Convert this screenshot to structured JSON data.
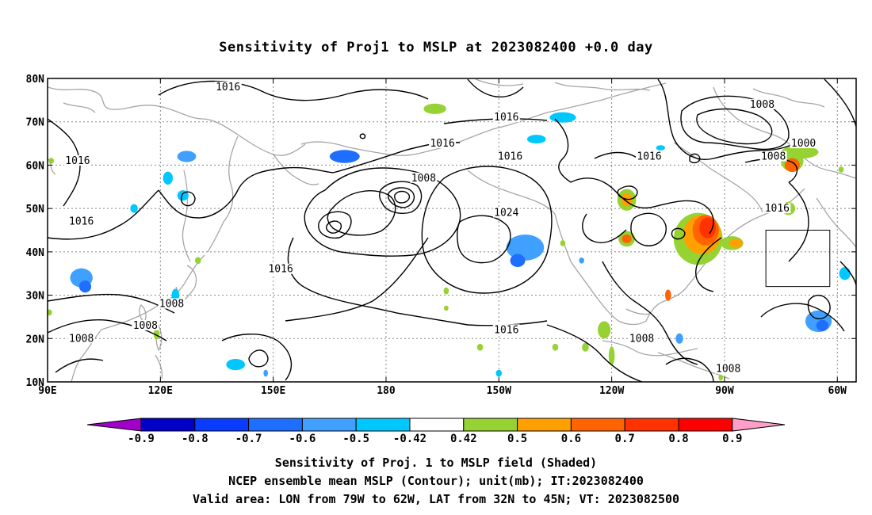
{
  "title": "Sensitivity of Proj1 to MSLP at 2023082400 +0.0 day",
  "map": {
    "lon_range": [
      90,
      305
    ],
    "lat_range": [
      10,
      80
    ],
    "x_ticks": [
      "90E",
      "120E",
      "150E",
      "180",
      "150W",
      "120W",
      "90W",
      "60W"
    ],
    "x_tick_lons": [
      90,
      120,
      150,
      180,
      210,
      240,
      270,
      300
    ],
    "y_ticks": [
      "10N",
      "20N",
      "30N",
      "40N",
      "50N",
      "60N",
      "70N",
      "80N"
    ],
    "y_tick_lats": [
      10,
      20,
      30,
      40,
      50,
      60,
      70,
      80
    ],
    "grid": "dotted",
    "coastline_color": "#a6a6a6",
    "valid_box": {
      "lon": [
        281,
        298
      ],
      "lat": [
        32,
        45
      ]
    }
  },
  "contour_labels": [
    {
      "text": "1016",
      "lon": 138,
      "lat": 78
    },
    {
      "text": "1016",
      "lon": 98,
      "lat": 61
    },
    {
      "text": "1016",
      "lon": 99,
      "lat": 47
    },
    {
      "text": "1016",
      "lon": 152,
      "lat": 36
    },
    {
      "text": "1008",
      "lon": 123,
      "lat": 28
    },
    {
      "text": "1008",
      "lon": 116,
      "lat": 23
    },
    {
      "text": "1008",
      "lon": 99,
      "lat": 20
    },
    {
      "text": "1016",
      "lon": 212,
      "lat": 71
    },
    {
      "text": "1016",
      "lon": 195,
      "lat": 65
    },
    {
      "text": "1008",
      "lon": 190,
      "lat": 57
    },
    {
      "text": "1016",
      "lon": 213,
      "lat": 62
    },
    {
      "text": "1024",
      "lon": 212,
      "lat": 49
    },
    {
      "text": "1016",
      "lon": 212,
      "lat": 22
    },
    {
      "text": "1016",
      "lon": 250,
      "lat": 62
    },
    {
      "text": "1008",
      "lon": 280,
      "lat": 74
    },
    {
      "text": "1000",
      "lon": 291,
      "lat": 65
    },
    {
      "text": "1008",
      "lon": 283,
      "lat": 62
    },
    {
      "text": "1016",
      "lon": 284,
      "lat": 50
    },
    {
      "text": "1008",
      "lon": 248,
      "lat": 20
    },
    {
      "text": "1008",
      "lon": 271,
      "lat": 13
    }
  ],
  "colorbar": {
    "labels": [
      "-0.9",
      "-0.8",
      "-0.7",
      "-0.6",
      "-0.5",
      "-0.42",
      "0.42",
      "0.5",
      "0.6",
      "0.7",
      "0.8",
      "0.9"
    ],
    "colors": [
      "#a000c8",
      "#0000c8",
      "#0a3cff",
      "#1e6eff",
      "#3fa0ff",
      "#00c8ff",
      "#ffffff",
      "#96d232",
      "#ffa000",
      "#ff6400",
      "#ff3200",
      "#ff0000",
      "#ff9ec8"
    ]
  },
  "shaded": [
    {
      "lon": 99,
      "lat": 34,
      "rx": 3,
      "ry": 2.2,
      "color": "#3fa0ff"
    },
    {
      "lon": 100,
      "lat": 32,
      "rx": 1.6,
      "ry": 1.4,
      "color": "#1e6eff"
    },
    {
      "lon": 127,
      "lat": 62,
      "rx": 2.5,
      "ry": 1.3,
      "color": "#3fa0ff"
    },
    {
      "lon": 122,
      "lat": 57,
      "rx": 1.3,
      "ry": 1.5,
      "color": "#00c8ff"
    },
    {
      "lon": 126,
      "lat": 53,
      "rx": 1.5,
      "ry": 1.2,
      "color": "#00c8ff"
    },
    {
      "lon": 169,
      "lat": 62,
      "rx": 4,
      "ry": 1.5,
      "color": "#1e6eff"
    },
    {
      "lon": 193,
      "lat": 73,
      "rx": 3,
      "ry": 1.2,
      "color": "#96d232"
    },
    {
      "lon": 217,
      "lat": 41,
      "rx": 5,
      "ry": 3,
      "color": "#3fa0ff"
    },
    {
      "lon": 215,
      "lat": 38,
      "rx": 2,
      "ry": 1.5,
      "color": "#1e6eff"
    },
    {
      "lon": 227,
      "lat": 71,
      "rx": 3.5,
      "ry": 1.2,
      "color": "#00c8ff"
    },
    {
      "lon": 220,
      "lat": 66,
      "rx": 2.5,
      "ry": 1,
      "color": "#00c8ff"
    },
    {
      "lon": 140,
      "lat": 14,
      "rx": 2.5,
      "ry": 1.3,
      "color": "#00c8ff"
    },
    {
      "lon": 113,
      "lat": 50,
      "rx": 1,
      "ry": 1,
      "color": "#00c8ff"
    },
    {
      "lon": 124,
      "lat": 30,
      "rx": 1,
      "ry": 1.5,
      "color": "#00c8ff"
    },
    {
      "lon": 244,
      "lat": 52,
      "rx": 2.5,
      "ry": 2.5,
      "color": "#96d232"
    },
    {
      "lon": 244,
      "lat": 52,
      "rx": 1.5,
      "ry": 1.5,
      "color": "#ffa000"
    },
    {
      "lon": 244,
      "lat": 43,
      "rx": 2.2,
      "ry": 1.8,
      "color": "#96d232"
    },
    {
      "lon": 244,
      "lat": 43,
      "rx": 1.3,
      "ry": 1,
      "color": "#ff6400"
    },
    {
      "lon": 263,
      "lat": 43,
      "rx": 6.5,
      "ry": 6,
      "color": "#96d232"
    },
    {
      "lon": 264,
      "lat": 44,
      "rx": 5,
      "ry": 4.5,
      "color": "#ffa000"
    },
    {
      "lon": 265,
      "lat": 45,
      "rx": 3.5,
      "ry": 3.5,
      "color": "#ff6400"
    },
    {
      "lon": 265.5,
      "lat": 45.5,
      "rx": 2.2,
      "ry": 2.4,
      "color": "#ff3200"
    },
    {
      "lon": 272,
      "lat": 42,
      "rx": 3,
      "ry": 1.6,
      "color": "#96d232"
    },
    {
      "lon": 273,
      "lat": 42,
      "rx": 1.8,
      "ry": 1,
      "color": "#ffa000"
    },
    {
      "lon": 288,
      "lat": 61,
      "rx": 3,
      "ry": 2.5,
      "color": "#96d232"
    },
    {
      "lon": 288,
      "lat": 60,
      "rx": 2,
      "ry": 1.6,
      "color": "#ff6400"
    },
    {
      "lon": 290,
      "lat": 63,
      "rx": 5,
      "ry": 1.5,
      "color": "#96d232"
    },
    {
      "lon": 287,
      "lat": 50,
      "rx": 1.8,
      "ry": 1.5,
      "color": "#96d232"
    },
    {
      "lon": 238,
      "lat": 22,
      "rx": 1.7,
      "ry": 2,
      "color": "#96d232"
    },
    {
      "lon": 240,
      "lat": 16,
      "rx": 0.8,
      "ry": 2.2,
      "color": "#96d232"
    },
    {
      "lon": 255,
      "lat": 30,
      "rx": 0.8,
      "ry": 1.3,
      "color": "#ff6400"
    },
    {
      "lon": 295,
      "lat": 24,
      "rx": 3.5,
      "ry": 2.5,
      "color": "#3fa0ff"
    },
    {
      "lon": 296,
      "lat": 23,
      "rx": 1.6,
      "ry": 1.3,
      "color": "#1e6eff"
    },
    {
      "lon": 302,
      "lat": 35,
      "rx": 1.5,
      "ry": 1.5,
      "color": "#00c8ff"
    },
    {
      "lon": 258,
      "lat": 20,
      "rx": 1,
      "ry": 1.2,
      "color": "#3fa0ff"
    },
    {
      "lon": 196,
      "lat": 31,
      "rx": 0.7,
      "ry": 0.8,
      "color": "#96d232"
    },
    {
      "lon": 196,
      "lat": 27,
      "rx": 0.6,
      "ry": 0.6,
      "color": "#96d232"
    },
    {
      "lon": 205,
      "lat": 18,
      "rx": 0.8,
      "ry": 0.8,
      "color": "#96d232"
    },
    {
      "lon": 225,
      "lat": 18,
      "rx": 0.8,
      "ry": 0.8,
      "color": "#96d232"
    },
    {
      "lon": 233,
      "lat": 18,
      "rx": 0.9,
      "ry": 1,
      "color": "#96d232"
    },
    {
      "lon": 210,
      "lat": 12,
      "rx": 0.8,
      "ry": 0.8,
      "color": "#00c8ff"
    },
    {
      "lon": 130,
      "lat": 38,
      "rx": 0.8,
      "ry": 0.8,
      "color": "#96d232"
    },
    {
      "lon": 119,
      "lat": 21,
      "rx": 0.8,
      "ry": 1.2,
      "color": "#96d232"
    },
    {
      "lon": 253,
      "lat": 64,
      "rx": 1.2,
      "ry": 0.6,
      "color": "#00c8ff"
    },
    {
      "lon": 301,
      "lat": 59,
      "rx": 0.7,
      "ry": 0.7,
      "color": "#96d232"
    },
    {
      "lon": 269,
      "lat": 11,
      "rx": 0.6,
      "ry": 0.7,
      "color": "#96d232"
    },
    {
      "lon": 148,
      "lat": 12,
      "rx": 0.6,
      "ry": 0.8,
      "color": "#3fa0ff"
    },
    {
      "lon": 232,
      "lat": 38,
      "rx": 0.7,
      "ry": 0.7,
      "color": "#3fa0ff"
    },
    {
      "lon": 227,
      "lat": 42,
      "rx": 0.7,
      "ry": 0.7,
      "color": "#96d232"
    },
    {
      "lon": 90.5,
      "lat": 26,
      "rx": 0.7,
      "ry": 0.7,
      "color": "#96d232"
    },
    {
      "lon": 91,
      "lat": 61,
      "rx": 0.7,
      "ry": 0.7,
      "color": "#96d232"
    }
  ],
  "captions": [
    "Sensitivity of Proj. 1 to MSLP field (Shaded)",
    "NCEP ensemble mean MSLP (Contour); unit(mb); IT:2023082400",
    "Valid area: LON from 79W to 62W, LAT from 32N to 45N; VT: 2023082500"
  ]
}
